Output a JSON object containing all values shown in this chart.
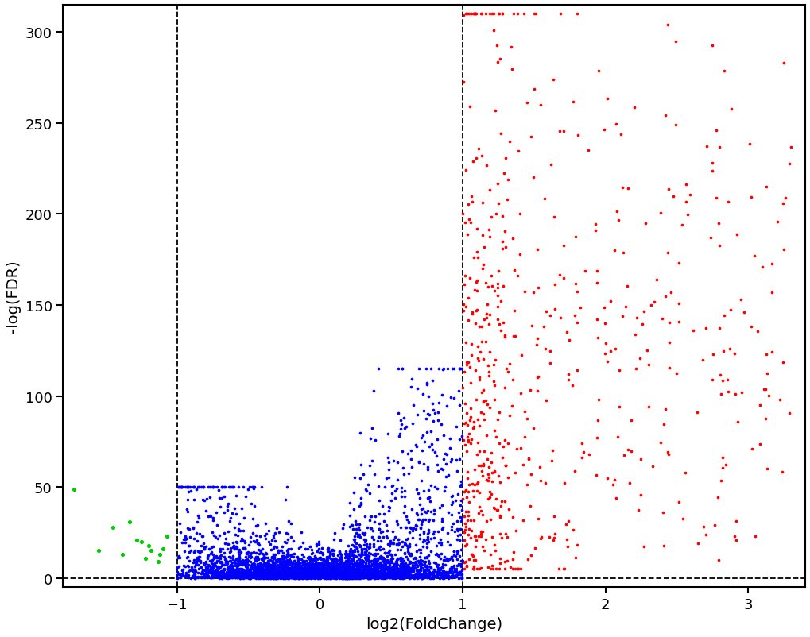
{
  "title": "",
  "xlabel": "log2(FoldChange)",
  "ylabel": "-log(FDR)",
  "xlim": [
    -1.8,
    3.4
  ],
  "ylim": [
    -5,
    315
  ],
  "xticks": [
    -1,
    0,
    1,
    2,
    3
  ],
  "yticks": [
    0,
    50,
    100,
    150,
    200,
    250,
    300
  ],
  "vline1": -1.0,
  "vline2": 1.0,
  "hline": 0.0,
  "blue_color": "#0000FF",
  "red_color": "#FF0000",
  "green_color": "#00CC00",
  "point_size": 7,
  "alpha": 1.0,
  "background_color": "#FFFFFF",
  "figsize": [
    10.2,
    8.03
  ],
  "dpi": 100
}
